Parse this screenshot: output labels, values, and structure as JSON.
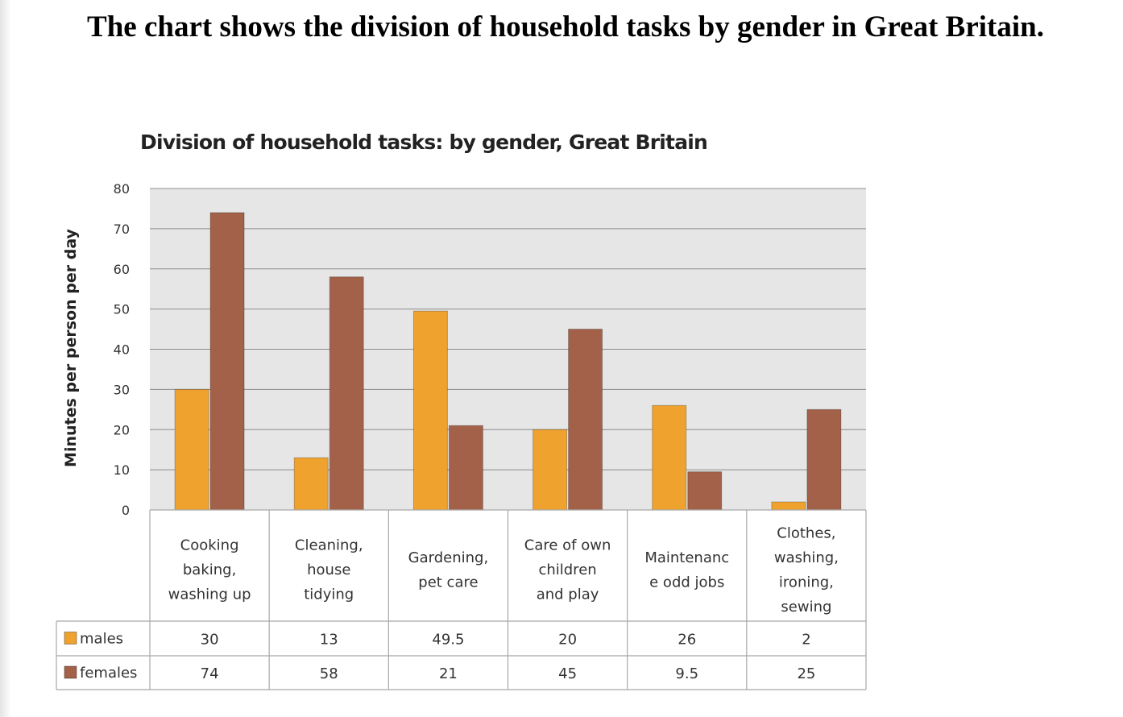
{
  "page": {
    "heading": "The chart shows the division of household tasks by gender in Great Britain."
  },
  "chart_data": {
    "type": "bar",
    "title": "Division of household tasks: by gender, Great Britain",
    "xlabel": "",
    "ylabel": "Minutes per person per day",
    "ylim": [
      0,
      80
    ],
    "yticks": [
      0,
      10,
      20,
      30,
      40,
      50,
      60,
      70,
      80
    ],
    "grid": true,
    "legend": "data-table-left",
    "categories": [
      [
        "Cooking",
        "baking,",
        "washing up"
      ],
      [
        "Cleaning,",
        "house",
        "tidying"
      ],
      [
        "Gardening,",
        "pet care"
      ],
      [
        "Care of own",
        "children",
        "and play"
      ],
      [
        "Maintenanc",
        "e odd jobs"
      ],
      [
        "Clothes,",
        "washing,",
        "ironing,",
        "sewing"
      ]
    ],
    "series": [
      {
        "name": "males",
        "color": "#f0a22e",
        "values": [
          30,
          13,
          49.5,
          20,
          26,
          2
        ]
      },
      {
        "name": "females",
        "color": "#a3614a",
        "values": [
          74,
          58,
          21,
          45,
          9.5,
          25
        ]
      }
    ],
    "colors": {
      "plot_background": "#e6e6e6",
      "gridline": "#8c8c8c",
      "table_border": "#a8a8a8"
    }
  }
}
